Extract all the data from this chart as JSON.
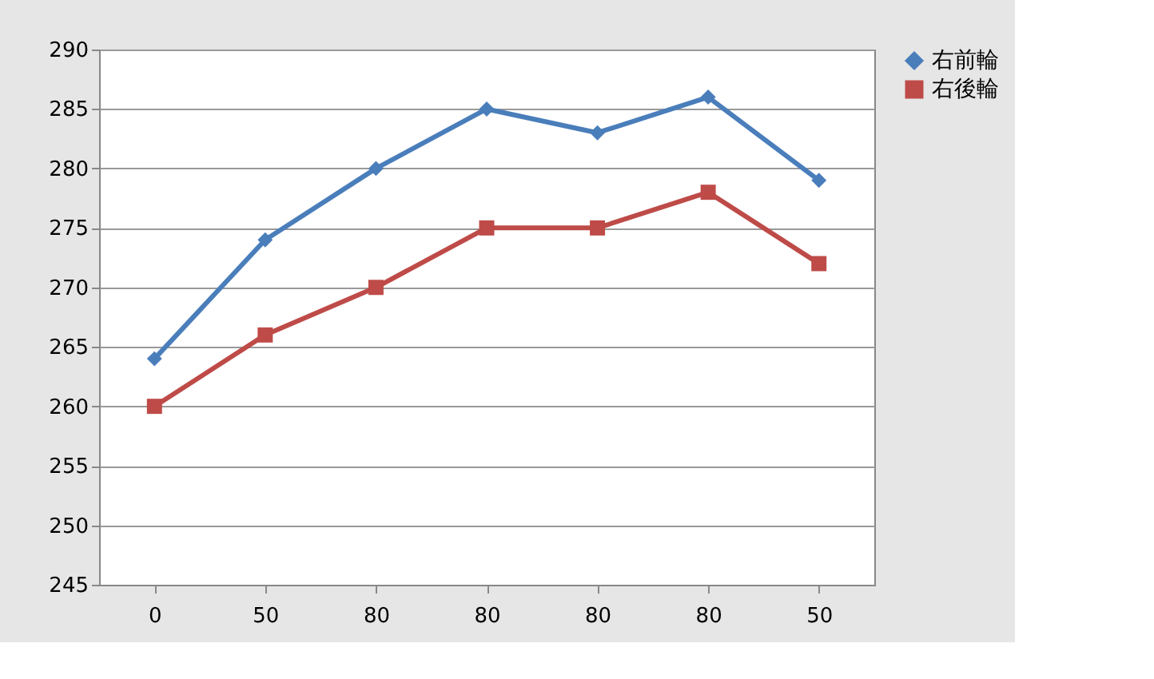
{
  "chart_data": {
    "type": "line",
    "categories": [
      "0",
      "50",
      "80",
      "80",
      "80",
      "80",
      "50"
    ],
    "series": [
      {
        "name": "右前輪",
        "color": "#4a7ebb",
        "marker": "diamond",
        "values": [
          264,
          274,
          280,
          285,
          283,
          286,
          279
        ]
      },
      {
        "name": "右後輪",
        "color": "#be4b48",
        "marker": "square",
        "values": [
          260,
          266,
          270,
          275,
          275,
          278,
          272
        ]
      }
    ],
    "ylim": [
      245,
      290
    ],
    "yticks": [
      245,
      250,
      255,
      260,
      265,
      270,
      275,
      280,
      285,
      290
    ],
    "grid": "y",
    "legend": "right",
    "line_style": "solid"
  }
}
